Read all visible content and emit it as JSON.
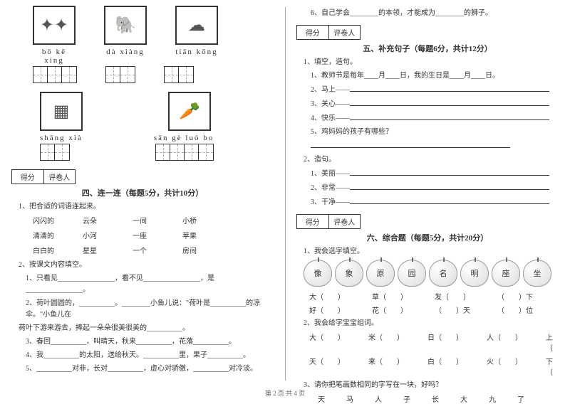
{
  "left": {
    "row1": {
      "pinyin": [
        "bō kē xíng",
        "dà xiàng",
        "tiān kōng"
      ],
      "cells": [
        3,
        2,
        2
      ]
    },
    "row2": {
      "pinyin": [
        "shāng xià",
        "sān gè luó bo"
      ],
      "cells": [
        2,
        4
      ]
    },
    "scoreLabels": [
      "得分",
      "评卷人"
    ],
    "section4Title": "四、连一连（每题5分，共计10分）",
    "q1": "1、把合适的词语连起来。",
    "match": [
      [
        "闪闪的",
        "云朵",
        "一间",
        "小桥"
      ],
      [
        "清清的",
        "小河",
        "一座",
        "苹果"
      ],
      [
        "白白的",
        "星星",
        "一个",
        "房间"
      ]
    ],
    "q2": "2、按课文内容填空。",
    "q2lines": [
      "1、只看见________________，看不见________________，是________________。",
      "2、荷叶圆圆的，__________。________小鱼儿说：\"荷叶是__________的凉伞。\"小鱼儿在",
      "荷叶下游来游去，捧起一朵朵很美很美的__________。",
      "3、春回__________，叫晴天，秋来__________，花落__________。",
      "4、我__________的太阳，送给秋天。__________里，果子__________。",
      "5、__________对非，长对__________，虚心对骄傲，__________对冷淡。"
    ]
  },
  "right": {
    "q6": "6、自己学会________的本领，才能成为________的狮子。",
    "scoreLabels": [
      "得分",
      "评卷人"
    ],
    "section5Title": "五、补充句子（每题6分，共计12分）",
    "q5_1": "1、填空，造句。",
    "q5_1lines": [
      "1、教师节是每年____月____日，我的生日是____月____日。",
      "2、马上——",
      "3、关心——",
      "4、快乐——",
      "5、鸡妈妈的孩子有哪些？"
    ],
    "q5_2": "2、造句。",
    "q5_2lines": [
      "1、美丽——",
      "2、非常——",
      "3、干净——"
    ],
    "section6Title": "六、综合题（每题5分，共计20分）",
    "q6_1": "1、我会选字填空。",
    "apples": [
      "像",
      "象",
      "原",
      "园",
      "名",
      "明",
      "座",
      "坐"
    ],
    "pairs1": [
      "大（　　）",
      "草（　　）",
      "发（　　）",
      "（　　）下"
    ],
    "pairs2": [
      "好（　　）",
      "花（　　）",
      "（　　）天",
      "（　　）位"
    ],
    "q6_2": "2、我会给字宝宝组词。",
    "chars1": [
      "大（　　）",
      "米（　　）",
      "日（　　）",
      "人（　　）",
      "上（"
    ],
    "chars2": [
      "天（　　）",
      "来（　　）",
      "白（　　）",
      "火（　　）",
      "下（"
    ],
    "q6_3": "3、请你把笔画数相同的字写在一块，好吗？",
    "q6_3chars": [
      "天",
      "马",
      "人",
      "子",
      "长",
      "大",
      "九",
      "了"
    ]
  },
  "footer": "第 2 页  共 4 页"
}
